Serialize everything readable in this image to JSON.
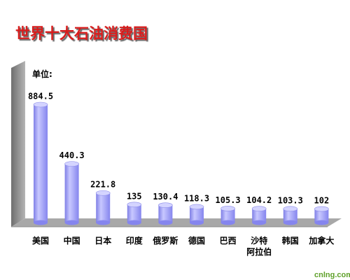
{
  "footer": {
    "text": "cnlng.com"
  },
  "colors": {
    "title": "#d81a1a",
    "bar": "#9a9af5",
    "wall": "#8a8a8a",
    "floor": "#a8a8a8"
  },
  "chart_data": {
    "type": "bar",
    "title": "世界十大石油消费国",
    "unit_label": "单位:",
    "categories": [
      "美国",
      "中国",
      "日本",
      "印度",
      "俄罗斯",
      "德国",
      "巴西",
      "沙特\n阿拉伯",
      "韩国",
      "加拿大"
    ],
    "values": [
      884.5,
      440.3,
      221.8,
      135,
      130.4,
      118.3,
      105.3,
      104.2,
      103.3,
      102
    ],
    "value_labels": [
      "884.5",
      "440.3",
      "221.8",
      "135",
      "130.4",
      "118.3",
      "105.3",
      "104.2",
      "103.3",
      "102"
    ],
    "ylim": [
      0,
      1000
    ],
    "grid": false,
    "legend": "none"
  }
}
